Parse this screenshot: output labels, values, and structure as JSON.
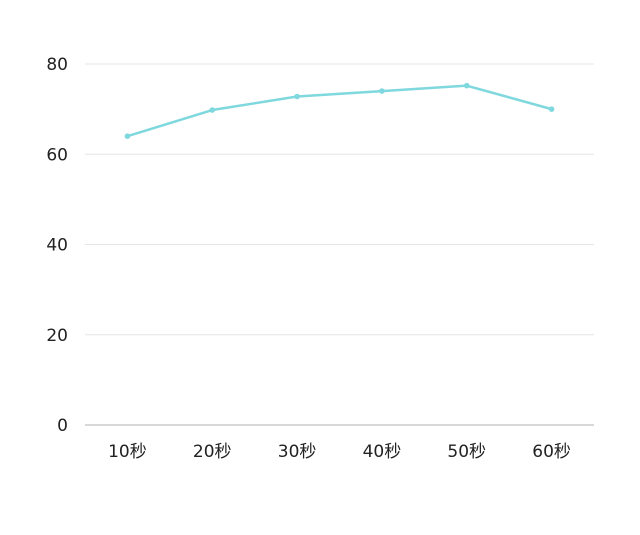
{
  "chart_data": {
    "type": "line",
    "categories": [
      "10秒",
      "20秒",
      "30秒",
      "40秒",
      "50秒",
      "60秒"
    ],
    "series": [
      {
        "values": [
          64,
          69.8,
          72.8,
          74,
          75.2,
          70
        ]
      }
    ],
    "ylim": [
      0,
      80
    ],
    "yticks": [
      0,
      20,
      40,
      60,
      80
    ],
    "grid": true,
    "line_color": "#7fd8de",
    "grid_color": "#e6e6e6",
    "axis_color": "#cccccc",
    "legend": "none"
  }
}
